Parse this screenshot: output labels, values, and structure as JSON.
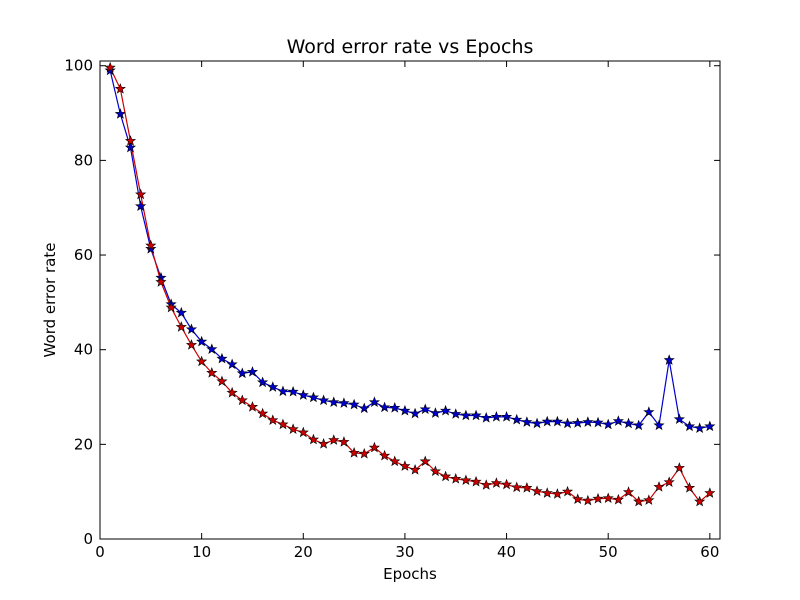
{
  "chart_data": {
    "type": "line",
    "title": "Word error rate vs Epochs",
    "xlabel": "Epochs",
    "ylabel": "Word error rate",
    "xlim": [
      0,
      61
    ],
    "ylim": [
      0,
      101
    ],
    "xticks": [
      0,
      10,
      20,
      30,
      40,
      50,
      60
    ],
    "yticks": [
      0,
      20,
      40,
      60,
      80,
      100
    ],
    "grid": false,
    "legend": "none",
    "x": [
      1,
      2,
      3,
      4,
      5,
      6,
      7,
      8,
      9,
      10,
      11,
      12,
      13,
      14,
      15,
      16,
      17,
      18,
      19,
      20,
      21,
      22,
      23,
      24,
      25,
      26,
      27,
      28,
      29,
      30,
      31,
      32,
      33,
      34,
      35,
      36,
      37,
      38,
      39,
      40,
      41,
      42,
      43,
      44,
      45,
      46,
      47,
      48,
      49,
      50,
      51,
      52,
      53,
      54,
      55,
      56,
      57,
      58,
      59,
      60
    ],
    "series": [
      {
        "color": "#0000cc",
        "marker": "star",
        "values": [
          99.0,
          89.8,
          82.7,
          70.3,
          61.3,
          55.2,
          49.6,
          47.8,
          44.3,
          41.7,
          40.1,
          38.1,
          36.9,
          35.0,
          35.3,
          33.1,
          32.1,
          31.2,
          31.1,
          30.4,
          29.9,
          29.3,
          28.9,
          28.7,
          28.4,
          27.6,
          28.9,
          27.8,
          27.7,
          27.1,
          26.5,
          27.4,
          26.6,
          27.1,
          26.4,
          26.1,
          26.1,
          25.6,
          25.8,
          25.8,
          25.2,
          24.7,
          24.4,
          24.8,
          24.8,
          24.4,
          24.5,
          24.7,
          24.6,
          24.2,
          24.9,
          24.4,
          24.0,
          26.8,
          24.0,
          37.8,
          25.3,
          23.8,
          23.4,
          23.8
        ]
      },
      {
        "color": "#cc0000",
        "marker": "star",
        "values": [
          99.6,
          95.1,
          84.1,
          72.8,
          62.0,
          54.3,
          48.9,
          44.8,
          41.0,
          37.5,
          35.1,
          33.3,
          30.9,
          29.3,
          27.9,
          26.5,
          25.1,
          24.2,
          23.2,
          22.5,
          21.0,
          20.1,
          20.9,
          20.5,
          18.2,
          18.0,
          19.3,
          17.6,
          16.4,
          15.4,
          14.6,
          16.4,
          14.3,
          13.2,
          12.7,
          12.4,
          12.1,
          11.4,
          11.8,
          11.5,
          10.9,
          10.8,
          10.1,
          9.7,
          9.5,
          10.0,
          8.4,
          8.1,
          8.5,
          8.6,
          8.3,
          9.9,
          7.9,
          8.2,
          11.0,
          12.0,
          15.0,
          10.8,
          7.9,
          9.7
        ]
      }
    ]
  }
}
